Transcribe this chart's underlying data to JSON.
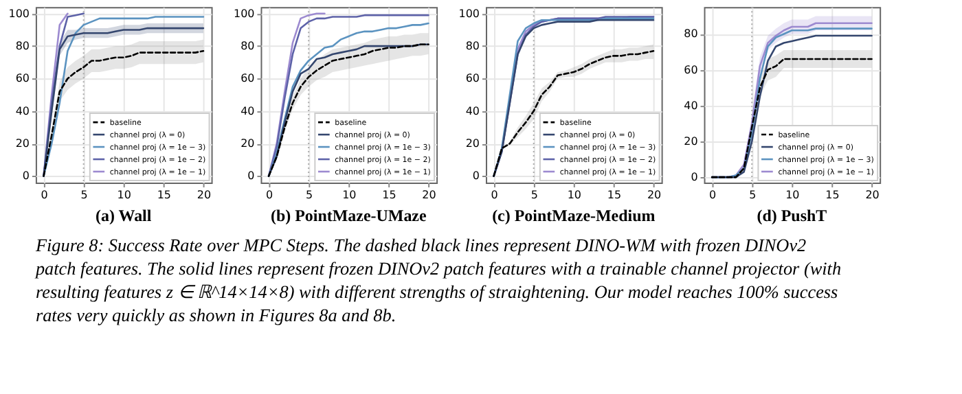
{
  "chart_data": [
    {
      "type": "line",
      "title": "(a) Wall",
      "x": [
        0,
        1,
        2,
        3,
        4,
        5,
        6,
        7,
        8,
        9,
        10,
        11,
        12,
        13,
        14,
        15,
        16,
        17,
        18,
        19,
        20
      ],
      "xlim": [
        -1,
        21
      ],
      "xticks": [
        0,
        5,
        10,
        15,
        20
      ],
      "ylim": [
        -4,
        104
      ],
      "yticks": [
        0,
        20,
        40,
        60,
        80,
        100
      ],
      "grid": true,
      "legend": "bottom right",
      "ref_lines": [
        {
          "axis": "x",
          "value": 5,
          "color": "#aaaaaa",
          "line_style": "dotted"
        }
      ],
      "series": [
        {
          "name": "baseline",
          "color": "#000000",
          "line_style": "dashed",
          "values": [
            0,
            25,
            52,
            60,
            64,
            67,
            71,
            71,
            72,
            73,
            73,
            74,
            76,
            76,
            76,
            76,
            76,
            76,
            76,
            76,
            77
          ],
          "lower": [
            0,
            20,
            46,
            53,
            57,
            60,
            64,
            64,
            65,
            66,
            66,
            67,
            69,
            69,
            69,
            69,
            69,
            69,
            69,
            69,
            70
          ],
          "upper": [
            0,
            30,
            58,
            67,
            71,
            74,
            78,
            78,
            79,
            80,
            80,
            81,
            83,
            83,
            83,
            83,
            83,
            83,
            83,
            83,
            84
          ]
        },
        {
          "name": "channel proj (λ = 0)",
          "color": "#34466e",
          "values": [
            0,
            40,
            78,
            86,
            87,
            88,
            88,
            88,
            88,
            89,
            90,
            90,
            90,
            91,
            91,
            91,
            91,
            91,
            91,
            91,
            91
          ],
          "lower": [
            0,
            36,
            74,
            82,
            84,
            85,
            85,
            85,
            85,
            86,
            87,
            87,
            87,
            88,
            88,
            88,
            88,
            88,
            88,
            88,
            88
          ],
          "upper": [
            0,
            44,
            82,
            90,
            90,
            91,
            91,
            91,
            91,
            92,
            93,
            93,
            93,
            94,
            94,
            94,
            94,
            94,
            94,
            94,
            94
          ]
        },
        {
          "name": "channel proj (λ = 1e − 3)",
          "color": "#5b93c0",
          "values": [
            0,
            20,
            45,
            77,
            88,
            93,
            95,
            97,
            97,
            97,
            97,
            97,
            97,
            97,
            98,
            98,
            98,
            98,
            98,
            98,
            98
          ]
        },
        {
          "name": "channel proj (λ = 1e − 2)",
          "color": "#5d62a8",
          "x": [
            0,
            1,
            2,
            3,
            4,
            5
          ],
          "values": [
            0,
            45,
            80,
            98,
            99,
            100
          ]
        },
        {
          "name": "channel proj (λ = 1e − 1)",
          "color": "#9c8ad0",
          "x": [
            0,
            1,
            2,
            3
          ],
          "values": [
            0,
            50,
            93,
            100
          ]
        }
      ]
    },
    {
      "type": "line",
      "title": "(b) PointMaze-UMaze",
      "x": [
        0,
        1,
        2,
        3,
        4,
        5,
        6,
        7,
        8,
        9,
        10,
        11,
        12,
        13,
        14,
        15,
        16,
        17,
        18,
        19,
        20
      ],
      "xlim": [
        -1,
        21
      ],
      "xticks": [
        0,
        5,
        10,
        15,
        20
      ],
      "ylim": [
        -4,
        104
      ],
      "yticks": [
        0,
        20,
        40,
        60,
        80,
        100
      ],
      "grid": true,
      "legend": "bottom right",
      "ref_lines": [
        {
          "axis": "x",
          "value": 5,
          "color": "#aaaaaa",
          "line_style": "dotted"
        }
      ],
      "series": [
        {
          "name": "baseline",
          "color": "#000000",
          "line_style": "dashed",
          "values": [
            0,
            12,
            30,
            45,
            55,
            61,
            65,
            68,
            71,
            72,
            73,
            74,
            75,
            77,
            78,
            79,
            79,
            80,
            80,
            81,
            81
          ],
          "lower": [
            0,
            10,
            27,
            41,
            50,
            55,
            59,
            61,
            64,
            65,
            66,
            67,
            68,
            69,
            70,
            71,
            72,
            73,
            74,
            74,
            75
          ],
          "upper": [
            0,
            14,
            33,
            49,
            60,
            67,
            71,
            75,
            78,
            79,
            80,
            81,
            82,
            84,
            85,
            86,
            86,
            87,
            87,
            88,
            88
          ]
        },
        {
          "name": "channel proj (λ = 0)",
          "color": "#34466e",
          "values": [
            0,
            12,
            33,
            52,
            63,
            66,
            72,
            73,
            75,
            76,
            77,
            78,
            80,
            80,
            80,
            80,
            80,
            80,
            80,
            81,
            81
          ]
        },
        {
          "name": "channel proj (λ = 1e − 3)",
          "color": "#5b93c0",
          "values": [
            0,
            14,
            35,
            55,
            65,
            71,
            75,
            79,
            80,
            84,
            86,
            88,
            89,
            89,
            90,
            91,
            91,
            92,
            93,
            93,
            94
          ]
        },
        {
          "name": "channel proj (λ = 1e − 2)",
          "color": "#5d62a8",
          "values": [
            0,
            18,
            48,
            75,
            91,
            95,
            97,
            97,
            98,
            98,
            98,
            98,
            99,
            99,
            99,
            99,
            99,
            99,
            99,
            99,
            99
          ]
        },
        {
          "name": "channel proj (λ = 1e − 1)",
          "color": "#9c8ad0",
          "x": [
            0,
            1,
            2,
            3,
            4,
            5,
            6,
            7
          ],
          "values": [
            0,
            20,
            52,
            82,
            97,
            99,
            100,
            100
          ]
        }
      ]
    },
    {
      "type": "line",
      "title": "(c) PointMaze-Medium",
      "x": [
        0,
        1,
        2,
        3,
        4,
        5,
        6,
        7,
        8,
        9,
        10,
        11,
        12,
        13,
        14,
        15,
        16,
        17,
        18,
        19,
        20
      ],
      "xlim": [
        -1,
        21
      ],
      "xticks": [
        0,
        5,
        10,
        15,
        20
      ],
      "ylim": [
        -4,
        104
      ],
      "yticks": [
        0,
        20,
        40,
        60,
        80,
        100
      ],
      "grid": true,
      "legend": "bottom right",
      "ref_lines": [
        {
          "axis": "x",
          "value": 5,
          "color": "#aaaaaa",
          "line_style": "dotted"
        }
      ],
      "series": [
        {
          "name": "baseline",
          "color": "#000000",
          "line_style": "dashed",
          "values": [
            0,
            17,
            20,
            27,
            33,
            40,
            50,
            55,
            62,
            63,
            64,
            66,
            69,
            71,
            73,
            74,
            74,
            75,
            75,
            76,
            77
          ],
          "lower": [
            0,
            17,
            19,
            24,
            29,
            35,
            46,
            52,
            60,
            61,
            61,
            63,
            66,
            68,
            70,
            70,
            70,
            71,
            71,
            72,
            72
          ],
          "upper": [
            0,
            17,
            21,
            30,
            37,
            45,
            54,
            58,
            64,
            65,
            67,
            69,
            72,
            74,
            76,
            78,
            78,
            79,
            79,
            80,
            81
          ]
        },
        {
          "name": "channel proj (λ = 0)",
          "color": "#34466e",
          "values": [
            0,
            15,
            45,
            75,
            86,
            91,
            93,
            94,
            95,
            95,
            95,
            95,
            95,
            96,
            96,
            96,
            96,
            96,
            96,
            96,
            96
          ]
        },
        {
          "name": "channel proj (λ = 1e − 3)",
          "color": "#5b93c0",
          "values": [
            0,
            17,
            50,
            83,
            91,
            94,
            96,
            96,
            96,
            96,
            96,
            96,
            96,
            96,
            97,
            97,
            97,
            97,
            97,
            97,
            97
          ]
        },
        {
          "name": "channel proj (λ = 1e − 2)",
          "color": "#5d62a8",
          "values": [
            0,
            15,
            45,
            75,
            87,
            92,
            95,
            96,
            97,
            97,
            97,
            97,
            97,
            97,
            98,
            98,
            98,
            98,
            98,
            98,
            98
          ]
        },
        {
          "name": "channel proj (λ = 1e − 1)",
          "color": "#9c8ad0",
          "values": [
            0,
            16,
            47,
            78,
            89,
            93,
            95,
            96,
            97,
            97,
            97,
            97,
            97,
            97,
            97,
            97,
            97,
            98,
            98,
            98,
            98
          ]
        }
      ]
    },
    {
      "type": "line",
      "title": "(d) PushT",
      "x": [
        0,
        1,
        2,
        3,
        4,
        5,
        6,
        7,
        8,
        9,
        10,
        11,
        12,
        13,
        14,
        15,
        16,
        17,
        18,
        19,
        20
      ],
      "xlim": [
        -1,
        21
      ],
      "xticks": [
        0,
        5,
        10,
        15,
        20
      ],
      "ylim": [
        -3,
        95
      ],
      "yticks": [
        0,
        20,
        40,
        60,
        80
      ],
      "grid": true,
      "legend": "bottom right",
      "ref_lines": [
        {
          "axis": "x",
          "value": 5,
          "color": "#aaaaaa",
          "line_style": "dotted"
        }
      ],
      "series": [
        {
          "name": "baseline",
          "color": "#000000",
          "line_style": "dashed",
          "values": [
            0,
            0,
            0,
            0,
            5,
            28,
            50,
            60,
            62,
            66,
            66,
            66,
            66,
            66,
            66,
            66,
            66,
            66,
            66,
            66,
            66
          ],
          "lower": [
            0,
            0,
            0,
            0,
            3,
            24,
            45,
            54,
            56,
            61,
            61,
            61,
            61,
            61,
            61,
            61,
            61,
            61,
            61,
            61,
            61
          ],
          "upper": [
            0,
            0,
            0,
            1,
            7,
            32,
            55,
            66,
            68,
            71,
            71,
            71,
            71,
            71,
            71,
            71,
            71,
            71,
            71,
            71,
            71
          ]
        },
        {
          "name": "channel proj (λ = 0)",
          "color": "#34466e",
          "values": [
            0,
            0,
            0,
            0,
            3,
            20,
            45,
            65,
            73,
            75,
            76,
            77,
            78,
            79,
            79,
            79,
            79,
            79,
            79,
            79,
            79
          ]
        },
        {
          "name": "channel proj (λ = 1e − 3)",
          "color": "#5b93c0",
          "values": [
            0,
            0,
            0,
            1,
            5,
            25,
            55,
            73,
            78,
            80,
            82,
            82,
            82,
            83,
            83,
            83,
            83,
            83,
            83,
            83,
            83
          ]
        },
        {
          "name": "channel proj (λ = 1e − 1)",
          "color": "#9c8ad0",
          "values": [
            0,
            0,
            0,
            1,
            7,
            30,
            62,
            75,
            79,
            82,
            84,
            84,
            84,
            86,
            86,
            86,
            86,
            86,
            86,
            86,
            86
          ],
          "lower": [
            0,
            0,
            0,
            1,
            6,
            25,
            57,
            71,
            75,
            78,
            80,
            80,
            80,
            82,
            82,
            82,
            82,
            82,
            82,
            82,
            82
          ],
          "upper": [
            0,
            0,
            0,
            1,
            8,
            35,
            67,
            79,
            83,
            86,
            88,
            88,
            88,
            90,
            90,
            90,
            90,
            90,
            90,
            90,
            90
          ]
        }
      ]
    },
    {
      "type": "other",
      "annotations": [
        "Figure 8: Success Rate over MPC Steps. The dashed black lines represent DINO-WM with frozen DINOv2",
        "patch features. The solid lines represent frozen DINOv2 patch features with a trainable channel projector (with",
        "resulting features z ∈ ℝ^14×14×8) with different strengths of straightening. Our model reaches 100% success",
        "rates very quickly as shown in Figures 8a and 8b."
      ]
    }
  ]
}
